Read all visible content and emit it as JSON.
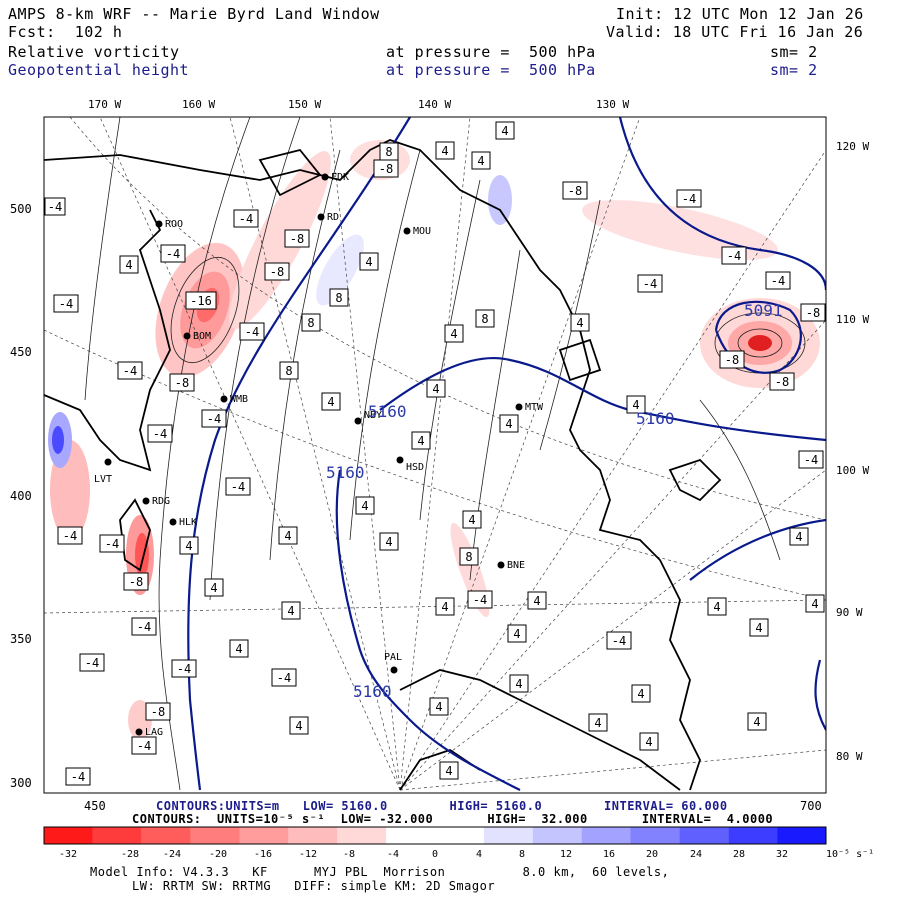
{
  "header": {
    "title": "AMPS 8-km WRF -- Marie Byrd Land Window",
    "forecast": "Fcst:  102 h",
    "init": "Init: 12 UTC Mon 12 Jan 26",
    "valid": "Valid: 18 UTC Fri 16 Jan 26",
    "field1_name": "Relative vorticity",
    "field1_level": "at pressure =  500 hPa",
    "field1_smooth": "sm= 2",
    "field2_name": "Geopotential height",
    "field2_level": "at pressure =  500 hPa",
    "field2_smooth": "sm= 2"
  },
  "map": {
    "lon_labels_top": [
      "170 W",
      "160 W",
      "150 W",
      "140 W",
      "130 W"
    ],
    "lon_labels_right": [
      "120 W",
      "110 W",
      "100 W",
      "90 W",
      "80 W"
    ],
    "y_ticks": [
      "500",
      "450",
      "400",
      "350",
      "300"
    ],
    "x_ticks": [
      "450",
      "700"
    ],
    "stations": [
      "ROO",
      "FDK",
      "RD",
      "MOU",
      "BOM",
      "WMB",
      "NBY",
      "MTW",
      "LVT",
      "HSD",
      "RDG",
      "HLK",
      "BNE",
      "PAL",
      "LAG"
    ],
    "vort_labels": [
      "4",
      "-4",
      "8",
      "-8",
      "-16"
    ],
    "height_labels": [
      "5160",
      "5091"
    ],
    "height_color": "#0a1a8c",
    "coast_color": "#000000"
  },
  "footer": {
    "contours1": "CONTOURS:UNITS=m   LOW= 5160.0        HIGH= 5160.0        INTERVAL= 60.000",
    "contours2": "CONTOURS:  UNITS=10⁻⁵ s⁻¹  LOW= -32.000       HIGH=  32.000       INTERVAL=  4.0000",
    "model_line1": "Model Info: V4.3.3   KF      MYJ PBL  Morrison          8.0 km,  60 levels,",
    "model_line2": "LW: RRTM SW: RRTMG   DIFF: simple KM: 2D Smagor"
  },
  "colorbar": {
    "labels": [
      "-32",
      "-28",
      "-24",
      "-20",
      "-16",
      "-12",
      "-8",
      "-4",
      "0",
      "4",
      "8",
      "12",
      "16",
      "20",
      "24",
      "28",
      "32"
    ],
    "unit": "10⁻⁵ s⁻¹",
    "colors": [
      "#ff1a1a",
      "#ff3c3c",
      "#ff5c5c",
      "#ff7d7d",
      "#ff9d9d",
      "#ffbcbc",
      "#ffd8d8",
      "#ffffff",
      "#ffffff",
      "#e2e2ff",
      "#c4c4ff",
      "#a3a3ff",
      "#8282ff",
      "#6060ff",
      "#3d3dff",
      "#1a1aff"
    ]
  }
}
